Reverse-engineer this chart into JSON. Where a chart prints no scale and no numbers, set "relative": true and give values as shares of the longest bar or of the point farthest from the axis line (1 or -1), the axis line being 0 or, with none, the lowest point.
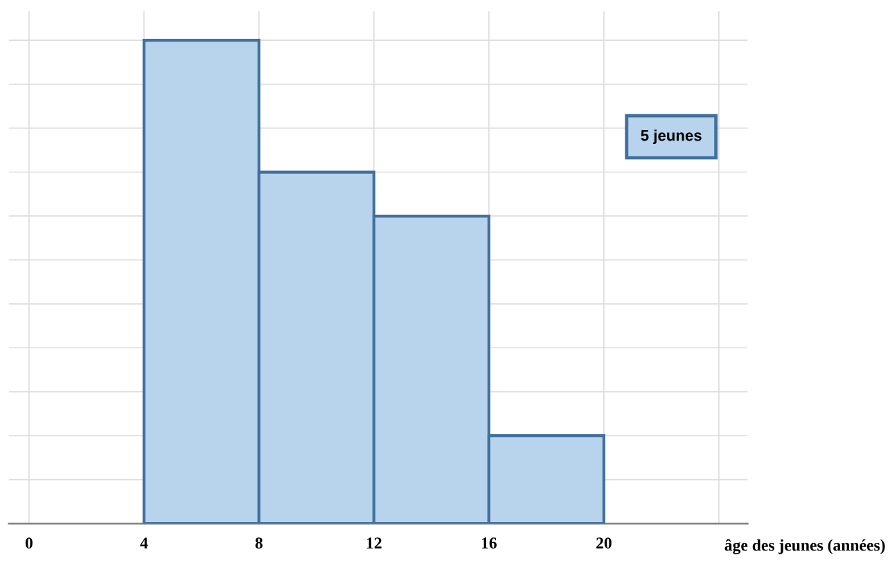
{
  "chart_data": {
    "type": "bar",
    "relative": true,
    "x": [
      6,
      10,
      14,
      18
    ],
    "values": [
      1,
      0.727,
      0.636,
      0.182
    ],
    "color": "#b8d3ec",
    "xlabel": "âge des jeunes (années)",
    "xlim": [
      -0.7,
      25
    ],
    "xticks": [
      0,
      4,
      8,
      12,
      16,
      20,
      {
        "value": 24,
        "label": null
      }
    ],
    "grid": true,
    "annotations": [
      "5 jeunes"
    ]
  }
}
